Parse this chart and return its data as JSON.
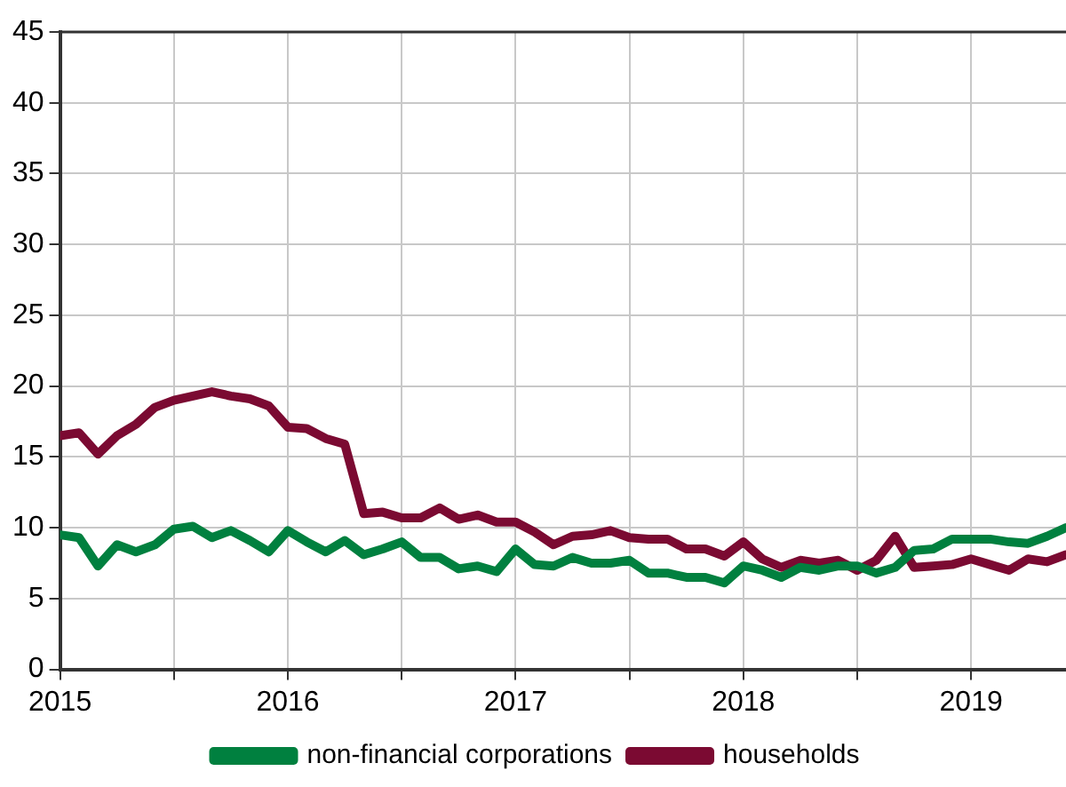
{
  "chart_data": {
    "type": "line",
    "x": [
      "2015-01",
      "2015-02",
      "2015-03",
      "2015-04",
      "2015-05",
      "2015-06",
      "2015-07",
      "2015-08",
      "2015-09",
      "2015-10",
      "2015-11",
      "2015-12",
      "2016-01",
      "2016-02",
      "2016-03",
      "2016-04",
      "2016-05",
      "2016-06",
      "2016-07",
      "2016-08",
      "2016-09",
      "2016-10",
      "2016-11",
      "2016-12",
      "2017-01",
      "2017-02",
      "2017-03",
      "2017-04",
      "2017-05",
      "2017-06",
      "2017-07",
      "2017-08",
      "2017-09",
      "2017-10",
      "2017-11",
      "2017-12",
      "2018-01",
      "2018-02",
      "2018-03",
      "2018-04",
      "2018-05",
      "2018-06",
      "2018-07",
      "2018-08",
      "2018-09",
      "2018-10",
      "2018-11",
      "2018-12",
      "2019-01",
      "2019-02",
      "2019-03",
      "2019-04",
      "2019-05",
      "2019-06"
    ],
    "series": [
      {
        "name": "non-financial corporations",
        "color": "#00803f",
        "values": [
          9.5,
          9.3,
          7.3,
          8.8,
          8.3,
          8.8,
          9.9,
          10.1,
          9.3,
          9.8,
          9.1,
          8.3,
          9.8,
          9.0,
          8.3,
          9.1,
          8.1,
          8.5,
          9.0,
          7.9,
          7.9,
          7.1,
          7.3,
          6.9,
          8.5,
          7.4,
          7.3,
          7.9,
          7.5,
          7.5,
          7.7,
          6.8,
          6.8,
          6.5,
          6.5,
          6.1,
          7.3,
          7.0,
          6.5,
          7.2,
          7.0,
          7.3,
          7.3,
          6.8,
          7.2,
          8.4,
          8.5,
          9.2,
          9.2,
          9.2,
          9.0,
          8.9,
          9.4,
          10.0
        ]
      },
      {
        "name": "households",
        "color": "#7b0a32",
        "values": [
          16.5,
          16.7,
          15.2,
          16.5,
          17.3,
          18.5,
          19.0,
          19.3,
          19.6,
          19.3,
          19.1,
          18.6,
          17.1,
          17.0,
          16.3,
          15.9,
          11.0,
          11.1,
          10.7,
          10.7,
          11.4,
          10.6,
          10.9,
          10.4,
          10.4,
          9.7,
          8.8,
          9.4,
          9.5,
          9.8,
          9.3,
          9.2,
          9.2,
          8.5,
          8.5,
          8.0,
          9.0,
          7.8,
          7.2,
          7.7,
          7.5,
          7.7,
          7.0,
          7.7,
          9.4,
          7.2,
          7.3,
          7.4,
          7.8,
          7.4,
          7.0,
          7.8,
          7.6,
          8.1
        ]
      }
    ],
    "xlim": [
      "2015-01",
      "2019-06"
    ],
    "xticks": [
      {
        "value": "2015-01",
        "label": "2015"
      },
      {
        "value": "2015-07",
        "label": null
      },
      {
        "value": "2016-01",
        "label": "2016"
      },
      {
        "value": "2016-07",
        "label": null
      },
      {
        "value": "2017-01",
        "label": "2017"
      },
      {
        "value": "2017-07",
        "label": null
      },
      {
        "value": "2018-01",
        "label": "2018"
      },
      {
        "value": "2018-07",
        "label": null
      },
      {
        "value": "2019-01",
        "label": "2019"
      }
    ],
    "ylim": [
      0,
      45
    ],
    "yticks": [
      0,
      5,
      10,
      15,
      20,
      25,
      30,
      35,
      40,
      45
    ],
    "grid": true,
    "legend": "bottom",
    "marker": "none",
    "line_style": "solid"
  }
}
